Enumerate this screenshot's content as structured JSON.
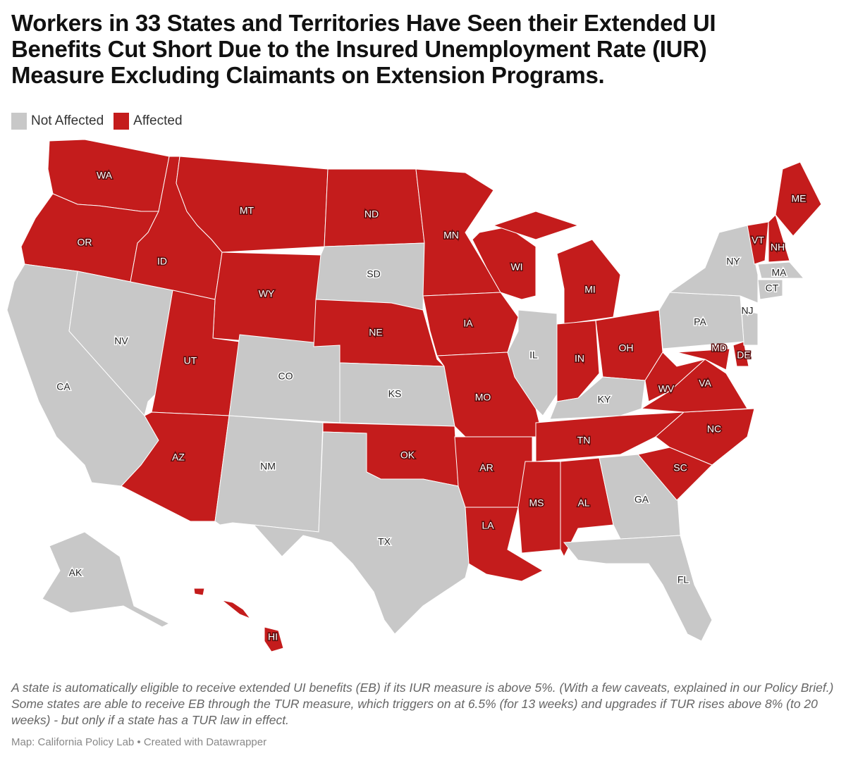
{
  "header": {
    "title": "Workers in 33 States and Territories Have Seen their Extended UI Benefits Cut Short Due to the Insured Unemployment Rate (IUR) Measure Excluding Claimants on Extension Programs."
  },
  "legend": [
    {
      "label": "Not Affected",
      "color": "#c8c8c8"
    },
    {
      "label": "Affected",
      "color": "#c41c1c"
    }
  ],
  "states": [
    {
      "abbr": "WA",
      "status": "Affected"
    },
    {
      "abbr": "OR",
      "status": "Affected"
    },
    {
      "abbr": "CA",
      "status": "Not Affected"
    },
    {
      "abbr": "NV",
      "status": "Not Affected"
    },
    {
      "abbr": "ID",
      "status": "Affected"
    },
    {
      "abbr": "MT",
      "status": "Affected"
    },
    {
      "abbr": "WY",
      "status": "Affected"
    },
    {
      "abbr": "UT",
      "status": "Affected"
    },
    {
      "abbr": "AZ",
      "status": "Affected"
    },
    {
      "abbr": "CO",
      "status": "Not Affected"
    },
    {
      "abbr": "NM",
      "status": "Not Affected"
    },
    {
      "abbr": "ND",
      "status": "Affected"
    },
    {
      "abbr": "SD",
      "status": "Not Affected"
    },
    {
      "abbr": "NE",
      "status": "Affected"
    },
    {
      "abbr": "KS",
      "status": "Not Affected"
    },
    {
      "abbr": "OK",
      "status": "Affected"
    },
    {
      "abbr": "TX",
      "status": "Not Affected"
    },
    {
      "abbr": "MN",
      "status": "Affected"
    },
    {
      "abbr": "IA",
      "status": "Affected"
    },
    {
      "abbr": "MO",
      "status": "Affected"
    },
    {
      "abbr": "AR",
      "status": "Affected"
    },
    {
      "abbr": "LA",
      "status": "Affected"
    },
    {
      "abbr": "WI",
      "status": "Affected"
    },
    {
      "abbr": "IL",
      "status": "Not Affected"
    },
    {
      "abbr": "MI",
      "status": "Affected"
    },
    {
      "abbr": "IN",
      "status": "Affected"
    },
    {
      "abbr": "OH",
      "status": "Affected"
    },
    {
      "abbr": "KY",
      "status": "Not Affected"
    },
    {
      "abbr": "TN",
      "status": "Affected"
    },
    {
      "abbr": "MS",
      "status": "Affected"
    },
    {
      "abbr": "AL",
      "status": "Affected"
    },
    {
      "abbr": "GA",
      "status": "Not Affected"
    },
    {
      "abbr": "FL",
      "status": "Not Affected"
    },
    {
      "abbr": "SC",
      "status": "Affected"
    },
    {
      "abbr": "NC",
      "status": "Affected"
    },
    {
      "abbr": "VA",
      "status": "Affected"
    },
    {
      "abbr": "WV",
      "status": "Affected"
    },
    {
      "abbr": "MD",
      "status": "Affected"
    },
    {
      "abbr": "DE",
      "status": "Affected"
    },
    {
      "abbr": "NJ",
      "status": "Not Affected"
    },
    {
      "abbr": "PA",
      "status": "Not Affected"
    },
    {
      "abbr": "NY",
      "status": "Not Affected"
    },
    {
      "abbr": "VT",
      "status": "Affected"
    },
    {
      "abbr": "NH",
      "status": "Affected"
    },
    {
      "abbr": "ME",
      "status": "Affected"
    },
    {
      "abbr": "MA",
      "status": "Not Affected"
    },
    {
      "abbr": "CT",
      "status": "Not Affected"
    },
    {
      "abbr": "AK",
      "status": "Not Affected"
    },
    {
      "abbr": "HI",
      "status": "Affected"
    }
  ],
  "notes": "A state is automatically eligible to receive extended UI benefits (EB) if its IUR measure is above 5%. (With a few caveats, explained in our Policy Brief.) Some states are able to receive EB through the TUR measure, which triggers on at 6.5% (for 13 weeks) and upgrades if TUR rises above 8% (to 20 weeks) - but only if a state has a TUR law in effect.",
  "footer": "Map: California Policy Lab • Created with Datawrapper"
}
